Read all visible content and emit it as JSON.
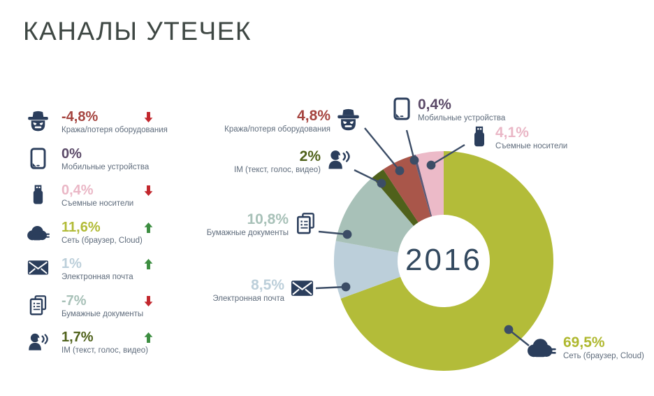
{
  "page": {
    "title": "КАНАЛЫ УТЕЧЕК"
  },
  "sidebar": {
    "items": [
      {
        "value": "-4,8%",
        "trend": "down",
        "label": "Кража/потеря оборудования",
        "color": "#a5443f",
        "icon": "spy-icon"
      },
      {
        "value": "0%",
        "trend": "none",
        "label": "Мобильные устройства",
        "color": "#5b4a68",
        "icon": "tablet-icon"
      },
      {
        "value": "0,4%",
        "trend": "down",
        "label": "Съемные носители",
        "color": "#eab7c6",
        "icon": "usb-icon"
      },
      {
        "value": "11,6%",
        "trend": "up",
        "label": "Сеть (браузер, Cloud)",
        "color": "#b2bb37",
        "icon": "cloud-icon"
      },
      {
        "value": "1%",
        "trend": "up",
        "label": "Электронная почта",
        "color": "#bccfda",
        "icon": "envelope-icon"
      },
      {
        "value": "-7%",
        "trend": "down",
        "label": "Бумажные документы",
        "color": "#a8c1b8",
        "icon": "documents-icon"
      },
      {
        "value": "1,7%",
        "trend": "up",
        "label": "IM (текст, голос, видео)",
        "color": "#4f611b",
        "icon": "person-speaking-icon"
      }
    ]
  },
  "chart_data": {
    "type": "pie",
    "subtype": "donut",
    "title": "КАНАЛЫ УТЕЧЕК",
    "center_label": "2016",
    "legend_position": "around-chart",
    "slices": [
      {
        "label": "Сеть (браузер, Cloud)",
        "value": 69.5,
        "display": "69,5%",
        "color": "#b3bc39",
        "text_color": "#afb82f",
        "icon": "cloud-icon"
      },
      {
        "label": "Электронная почта",
        "value": 8.5,
        "display": "8,5%",
        "color": "#bccfda",
        "text_color": "#bccfda",
        "icon": "envelope-icon"
      },
      {
        "label": "Бумажные документы",
        "value": 10.8,
        "display": "10,8%",
        "color": "#a8c1b8",
        "text_color": "#a8c1b8",
        "icon": "documents-icon"
      },
      {
        "label": "IM (текст, голос, видео)",
        "value": 2.0,
        "display": "2%",
        "color": "#4f611b",
        "text_color": "#4f611b",
        "icon": "person-speaking-icon"
      },
      {
        "label": "Кража/потеря оборудования",
        "value": 4.8,
        "display": "4,8%",
        "color": "#a9564a",
        "text_color": "#a5443f",
        "icon": "spy-icon"
      },
      {
        "label": "Мобильные устройства",
        "value": 0.4,
        "display": "0,4%",
        "color": "#5c5a78",
        "text_color": "#5b4a68",
        "icon": "tablet-icon"
      },
      {
        "label": "Съемные носители",
        "value": 4.1,
        "display": "4,1%",
        "color": "#ecbac8",
        "text_color": "#eab7c6",
        "icon": "usb-icon"
      }
    ]
  },
  "colors": {
    "trend_up": "#3c8d40",
    "trend_down": "#c2272d",
    "icon_navy": "#2b3e5c",
    "leader_line": "#3c4d66",
    "sublabel_gray": "#5f6c7c",
    "title_text": "#3e4743",
    "center_year_text": "#33495f",
    "background": "#ffffff"
  }
}
